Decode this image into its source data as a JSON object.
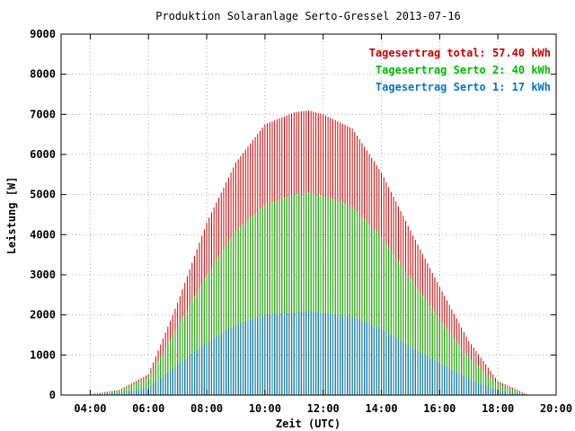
{
  "chart_data": {
    "type": "bar",
    "title": "Produktion Solaranlage Serto-Gressel 2013-07-16",
    "xlabel": "Zeit (UTC)",
    "ylabel": "Leistung [W]",
    "xlim": [
      "03:00",
      "20:00"
    ],
    "ylim": [
      0,
      9000
    ],
    "yticks": [
      "0",
      "1000",
      "2000",
      "3000",
      "4000",
      "5000",
      "6000",
      "7000",
      "8000",
      "9000"
    ],
    "xticks": [
      "04:00",
      "06:00",
      "08:00",
      "10:00",
      "12:00",
      "14:00",
      "16:00",
      "18:00",
      "20:00"
    ],
    "grid": true,
    "legend_position": "top-right",
    "interval_minutes": 5,
    "x": [
      "04:00",
      "05:00",
      "06:00",
      "07:00",
      "08:00",
      "09:00",
      "10:00",
      "11:00",
      "11:30",
      "12:00",
      "13:00",
      "14:00",
      "15:00",
      "16:00",
      "17:00",
      "18:00",
      "19:00"
    ],
    "series": [
      {
        "name": "Tagesertrag total: 57.40 kWh",
        "color": "#cc0000",
        "values": [
          20,
          130,
          520,
          2300,
          4300,
          5800,
          6750,
          7050,
          7100,
          7000,
          6650,
          5550,
          4100,
          2700,
          1350,
          350,
          20
        ]
      },
      {
        "name": "Tagesertrag Serto 2: 40 kWh",
        "color": "#00bb00",
        "values": [
          15,
          110,
          420,
          1700,
          3000,
          4100,
          4750,
          5000,
          5050,
          4980,
          4700,
          3950,
          2900,
          1900,
          950,
          260,
          15
        ]
      },
      {
        "name": "Tagesertrag Serto 1: 17 kWh",
        "color": "#0077cc",
        "values": [
          5,
          50,
          180,
          750,
          1300,
          1750,
          2000,
          2050,
          2100,
          2050,
          1950,
          1650,
          1200,
          800,
          400,
          110,
          5
        ]
      }
    ]
  }
}
